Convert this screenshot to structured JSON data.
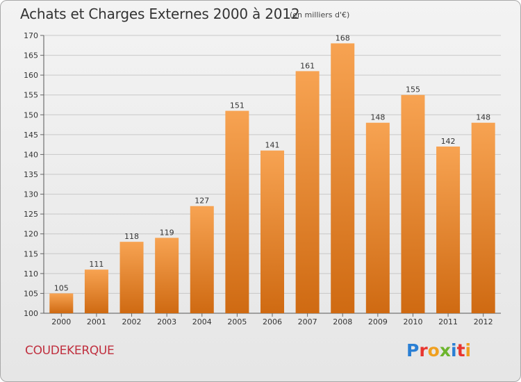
{
  "header": {
    "title": "Achats et Charges Externes 2000 à 2012",
    "subtitle": "(en milliers d'€)"
  },
  "footer": {
    "city": "COUDEKERQUE",
    "logo_text": "Proxiti"
  },
  "colors": {
    "bar_top": "#f7a352",
    "bar_bottom": "#cf6a12",
    "grid": "#c8c8c8",
    "city_text": "#c0303f"
  },
  "chart_data": {
    "type": "bar",
    "title": "Achats et Charges Externes 2000 à 2012",
    "subtitle": "(en milliers d'€)",
    "categories": [
      "2000",
      "2001",
      "2002",
      "2003",
      "2004",
      "2005",
      "2006",
      "2007",
      "2008",
      "2009",
      "2010",
      "2011",
      "2012"
    ],
    "values": [
      105,
      111,
      118,
      119,
      127,
      151,
      141,
      161,
      168,
      148,
      155,
      142,
      148
    ],
    "ylim": [
      100,
      170
    ],
    "yticks": [
      100,
      105,
      110,
      115,
      120,
      125,
      130,
      135,
      140,
      145,
      150,
      155,
      160,
      165,
      170
    ],
    "grid": true,
    "data_labels": true
  }
}
